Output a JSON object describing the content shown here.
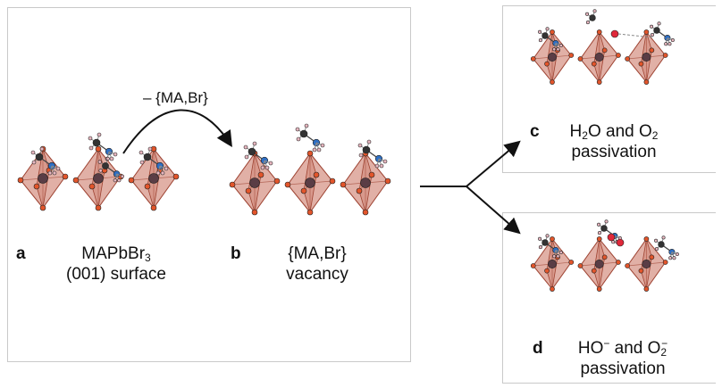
{
  "panels": {
    "a": {
      "letter": "a",
      "line1_main": "MAPbBr",
      "line1_sub": "3",
      "line2": "(001) surface"
    },
    "b": {
      "letter": "b",
      "line1": "{MA,Br}",
      "line2": "vacancy"
    },
    "c": {
      "letter": "c",
      "line1_p1": "H",
      "line1_sub1": "2",
      "line1_p2": "O and O",
      "line1_sub2": "2",
      "line2": "passivation"
    },
    "d": {
      "letter": "d",
      "line1_p1": "HO",
      "line1_sup1": "−",
      "line1_p2": " and O",
      "line1_sub2": "2",
      "line1_sup2": "−",
      "line2": "passivation"
    }
  },
  "arrow_label": "– {MA,Br}",
  "colors": {
    "octahedron_fill": "#c9705d",
    "octahedron_edge": "#9e4332",
    "bromine": "#e2552b",
    "lead": "#5a3d45",
    "nitrogen": "#2e6fc4",
    "carbon": "#333333",
    "hydrogen": "#e8b7c0",
    "oxygen": "#e0283a"
  }
}
